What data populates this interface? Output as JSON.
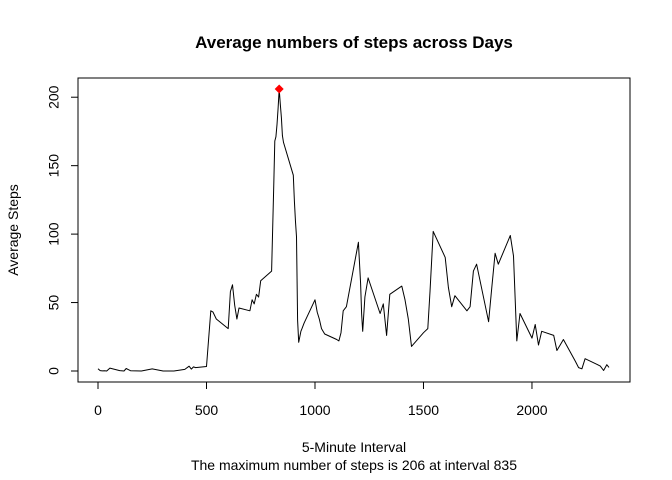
{
  "chart_data": {
    "type": "line",
    "title": "Average numbers of steps across Days",
    "xlabel": "5-Minute Interval",
    "ylabel": "Average Steps",
    "subtitle": "The maximum number of steps is 206 at interval 835",
    "xlim": [
      0,
      2355
    ],
    "ylim": [
      0,
      206
    ],
    "xticks": [
      0,
      500,
      1000,
      1500,
      2000
    ],
    "yticks": [
      0,
      50,
      100,
      150,
      200
    ],
    "grid": false,
    "legend": "none",
    "series": [
      {
        "color": "#000000",
        "x": [
          0,
          10,
          20,
          30,
          40,
          55,
          100,
          120,
          130,
          150,
          200,
          250,
          300,
          350,
          400,
          420,
          430,
          440,
          450,
          500,
          520,
          530,
          545,
          600,
          610,
          620,
          630,
          640,
          650,
          700,
          710,
          720,
          730,
          740,
          750,
          800,
          810,
          815,
          820,
          825,
          830,
          835,
          840,
          845,
          850,
          855,
          900,
          905,
          910,
          915,
          920,
          925,
          930,
          935,
          940,
          950,
          1000,
          1010,
          1020,
          1030,
          1045,
          1100,
          1110,
          1120,
          1130,
          1145,
          1200,
          1210,
          1215,
          1220,
          1230,
          1245,
          1300,
          1315,
          1330,
          1345,
          1400,
          1415,
          1430,
          1445,
          1500,
          1520,
          1530,
          1545,
          1600,
          1615,
          1630,
          1645,
          1700,
          1715,
          1730,
          1745,
          1800,
          1815,
          1830,
          1845,
          1900,
          1915,
          1930,
          1945,
          2000,
          2015,
          2030,
          2045,
          2100,
          2115,
          2130,
          2145,
          2200,
          2215,
          2230,
          2245,
          2300,
          2315,
          2330,
          2345,
          2355
        ],
        "y": [
          1.7,
          0.3,
          0.1,
          0.2,
          0,
          2.1,
          0.3,
          0,
          1.8,
          0.2,
          0,
          1.5,
          0,
          0,
          1.2,
          3.5,
          1.4,
          3,
          2.5,
          3.3,
          44,
          43,
          38,
          31,
          58,
          63,
          48,
          38,
          46,
          44,
          52,
          49,
          56,
          54,
          66,
          73,
          137,
          168,
          171,
          180,
          192,
          206,
          195,
          185,
          172,
          167,
          143,
          124,
          109,
          98,
          37,
          21,
          25,
          29,
          31,
          35,
          52,
          43,
          38,
          31,
          27,
          23,
          22,
          28,
          44,
          47,
          94,
          64,
          42,
          29,
          54,
          68,
          42,
          49,
          26,
          56,
          62,
          52,
          38,
          18,
          28,
          31,
          58,
          102,
          83,
          61,
          47,
          55,
          44,
          47,
          73,
          78,
          36,
          61,
          86,
          78,
          99,
          84,
          22,
          42,
          24,
          34,
          19,
          29,
          26,
          15,
          19,
          23,
          7,
          2.5,
          1.6,
          9,
          4.8,
          3.6,
          0.4,
          4.6,
          2.6
        ],
        "marker_x": 835,
        "marker_y": 206,
        "marker_color": "#ff0000"
      }
    ]
  }
}
